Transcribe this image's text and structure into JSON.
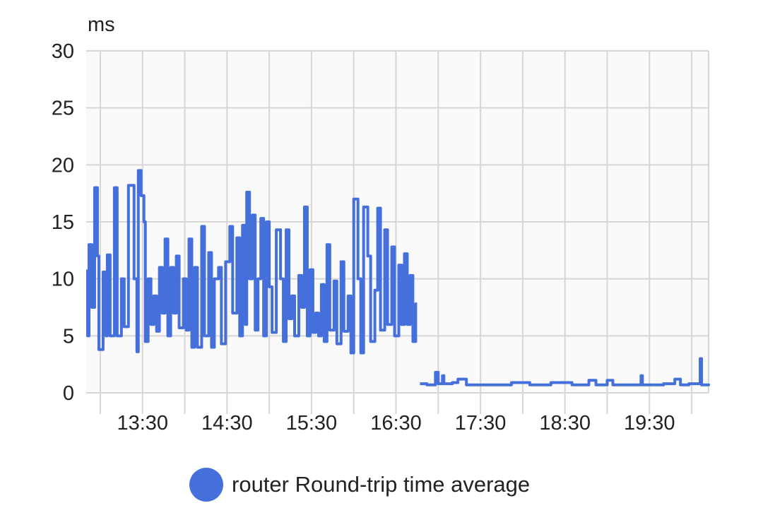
{
  "chart_data": {
    "type": "line",
    "step": true,
    "ylabel": "ms",
    "ylim": [
      0,
      30
    ],
    "yticks": [
      0,
      5,
      10,
      15,
      20,
      25,
      30
    ],
    "xlim": [
      "12:50",
      "20:12"
    ],
    "xticks": [
      "13:30",
      "14:30",
      "15:30",
      "16:30",
      "17:30",
      "18:30",
      "19:30"
    ],
    "grid": true,
    "legend_position": "bottom",
    "series": [
      {
        "name": "router Round-trip time average",
        "color": "#4570dc",
        "segments": [
          [
            [
              "12:50",
              10.7
            ],
            [
              "12:51",
              5
            ],
            [
              "12:52",
              13
            ],
            [
              "12:54",
              7.5
            ],
            [
              "12:56",
              18
            ],
            [
              "12:58",
              12
            ],
            [
              "12:59",
              3.8
            ],
            [
              "13:02",
              10.6
            ],
            [
              "13:04",
              5
            ],
            [
              "13:05",
              12.1
            ],
            [
              "13:07",
              5
            ],
            [
              "13:10",
              18
            ],
            [
              "13:12",
              5
            ],
            [
              "13:15",
              10
            ],
            [
              "13:17",
              5.8
            ],
            [
              "13:20",
              18.2
            ],
            [
              "13:24",
              10
            ],
            [
              "13:26",
              3.6
            ],
            [
              "13:27",
              19.5
            ],
            [
              "13:29",
              17.3
            ],
            [
              "13:31",
              15
            ],
            [
              "13:32",
              4.5
            ],
            [
              "13:34",
              10
            ],
            [
              "13:36",
              6
            ],
            [
              "13:38",
              8.5
            ],
            [
              "13:40",
              5.4
            ],
            [
              "13:42",
              11
            ],
            [
              "13:44",
              7
            ],
            [
              "13:46",
              13.5
            ],
            [
              "13:48",
              5
            ],
            [
              "13:50",
              11
            ],
            [
              "13:52",
              7
            ],
            [
              "13:54",
              12
            ],
            [
              "13:56",
              5.7
            ],
            [
              "13:59",
              10
            ],
            [
              "14:01",
              5.5
            ],
            [
              "14:03",
              13.5
            ],
            [
              "14:05",
              4
            ],
            [
              "14:07",
              11
            ],
            [
              "14:09",
              4
            ],
            [
              "14:12",
              14.6
            ],
            [
              "14:14",
              5
            ],
            [
              "14:17",
              12.3
            ],
            [
              "14:19",
              4
            ],
            [
              "14:21",
              10
            ],
            [
              "14:24",
              11
            ],
            [
              "14:26",
              4.3
            ],
            [
              "14:29",
              11.5
            ],
            [
              "14:32",
              14.6
            ],
            [
              "14:34",
              7
            ],
            [
              "14:37",
              13.6
            ],
            [
              "14:39",
              5
            ],
            [
              "14:41",
              14.7
            ],
            [
              "14:43",
              6
            ],
            [
              "14:44",
              17.6
            ],
            [
              "14:46",
              10
            ],
            [
              "14:48",
              15.6
            ],
            [
              "14:50",
              5.5
            ],
            [
              "14:52",
              10
            ],
            [
              "14:54",
              15.3
            ],
            [
              "14:56",
              5
            ],
            [
              "14:58",
              15
            ],
            [
              "15:00",
              9.3
            ],
            [
              "15:02",
              5.3
            ],
            [
              "15:05",
              14.3
            ],
            [
              "15:08",
              10
            ],
            [
              "15:10",
              4.5
            ],
            [
              "15:12",
              14.3
            ],
            [
              "15:14",
              6.5
            ],
            [
              "15:16",
              8.5
            ],
            [
              "15:18",
              5
            ],
            [
              "15:21",
              10.3
            ],
            [
              "15:23",
              7.5
            ],
            [
              "15:25",
              16.3
            ],
            [
              "15:27",
              5
            ],
            [
              "15:29",
              10.8
            ],
            [
              "15:31",
              5.3
            ],
            [
              "15:33",
              7
            ],
            [
              "15:35",
              5
            ],
            [
              "15:37",
              9.5
            ],
            [
              "15:39",
              4.5
            ],
            [
              "15:41",
              13
            ],
            [
              "15:43",
              5.5
            ],
            [
              "15:46",
              9.8
            ],
            [
              "15:48",
              4.3
            ],
            [
              "15:51",
              11.5
            ],
            [
              "15:53",
              5.4
            ],
            [
              "15:56",
              8.5
            ],
            [
              "15:58",
              3.5
            ],
            [
              "16:00",
              17
            ],
            [
              "16:03",
              10
            ],
            [
              "16:05",
              3.5
            ],
            [
              "16:07",
              16.3
            ],
            [
              "16:10",
              12
            ],
            [
              "16:12",
              4.5
            ],
            [
              "16:15",
              9
            ],
            [
              "16:17",
              16.2
            ],
            [
              "16:19",
              5.5
            ],
            [
              "16:22",
              14.3
            ],
            [
              "16:24",
              6
            ],
            [
              "16:27",
              12.8
            ],
            [
              "16:29",
              5
            ],
            [
              "16:32",
              11.2
            ],
            [
              "16:34",
              6
            ],
            [
              "16:36",
              12.2
            ],
            [
              "16:38",
              6
            ],
            [
              "16:40",
              10.3
            ],
            [
              "16:42",
              4.5
            ],
            [
              "16:44",
              7.8
            ],
            [
              "16:45",
              7.8
            ]
          ],
          [
            [
              "16:47",
              0.8
            ],
            [
              "16:52",
              0.7
            ],
            [
              "16:58",
              1.8
            ],
            [
              "17:00",
              0.8
            ],
            [
              "17:03",
              1.5
            ],
            [
              "17:04",
              0.8
            ],
            [
              "17:10",
              0.9
            ],
            [
              "17:14",
              1.2
            ],
            [
              "17:20",
              0.7
            ],
            [
              "17:35",
              0.7
            ],
            [
              "17:52",
              0.9
            ],
            [
              "18:05",
              0.7
            ],
            [
              "18:20",
              0.9
            ],
            [
              "18:35",
              0.7
            ],
            [
              "18:47",
              1.1
            ],
            [
              "18:52",
              0.7
            ],
            [
              "19:00",
              1.1
            ],
            [
              "19:04",
              0.7
            ],
            [
              "19:18",
              0.7
            ],
            [
              "19:24",
              1.5
            ],
            [
              "19:25",
              0.7
            ],
            [
              "19:40",
              0.8
            ],
            [
              "19:48",
              1.2
            ],
            [
              "19:52",
              0.7
            ],
            [
              "19:58",
              0.8
            ],
            [
              "20:06",
              3.0
            ],
            [
              "20:07",
              0.7
            ],
            [
              "20:12",
              0.8
            ]
          ]
        ]
      }
    ]
  }
}
